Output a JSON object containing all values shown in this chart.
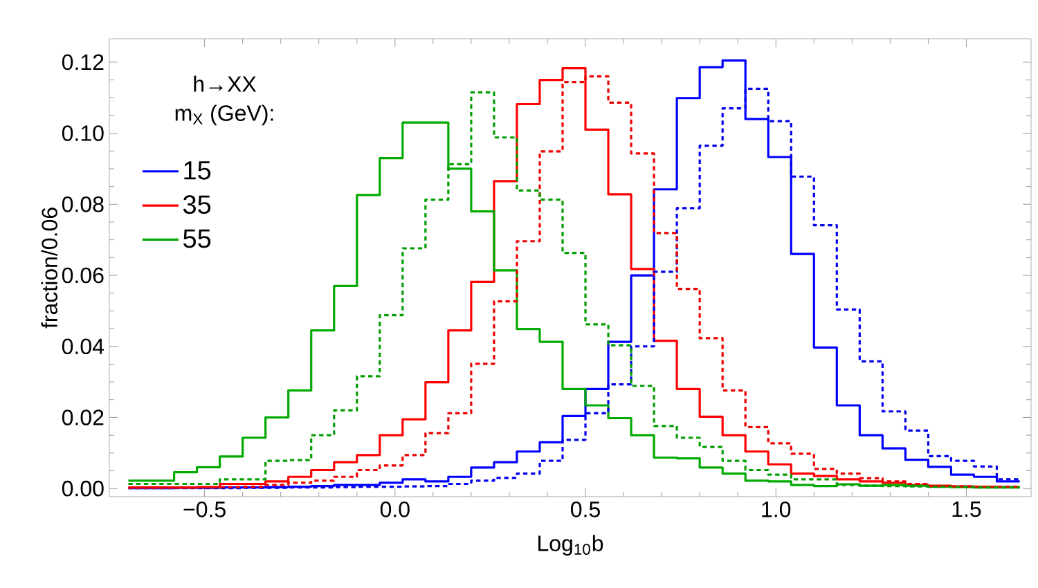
{
  "chart_data": {
    "type": "histogram",
    "bins": [
      -0.7,
      -0.64,
      -0.58,
      -0.52,
      -0.46,
      -0.4,
      -0.34,
      -0.28,
      -0.22,
      -0.16,
      -0.1,
      -0.04,
      0.02,
      0.08,
      0.14,
      0.2,
      0.26,
      0.32,
      0.38,
      0.44,
      0.5,
      0.56,
      0.62,
      0.68,
      0.74,
      0.8,
      0.86,
      0.92,
      0.98,
      1.04,
      1.1,
      1.16,
      1.22,
      1.28,
      1.34,
      1.4,
      1.46,
      1.52,
      1.58,
      1.64
    ],
    "xlabel": "Log$_{10}$b",
    "ylabel": "fraction/0.06",
    "legend_title": [
      "h→XX",
      "m$_{X}$ (GeV):"
    ],
    "legend": "top left",
    "xlim": [
      -0.75,
      1.67
    ],
    "ylim": [
      -0.0023,
      0.1266
    ],
    "xticks": [
      {
        "value": -0.5,
        "label": "−0.5"
      },
      {
        "value": 0,
        "label": "0.0"
      },
      {
        "value": 0.5,
        "label": "0.5"
      },
      {
        "value": 1,
        "label": "1.0"
      },
      {
        "value": 1.5,
        "label": "1.5"
      }
    ],
    "yticks": [
      {
        "value": 0,
        "label": "0.00"
      },
      {
        "value": 0.02,
        "label": "0.02"
      },
      {
        "value": 0.04,
        "label": "0.04"
      },
      {
        "value": 0.06,
        "label": "0.06"
      },
      {
        "value": 0.08,
        "label": "0.08"
      },
      {
        "value": 0.1,
        "label": "0.10"
      },
      {
        "value": 0.12,
        "label": "0.12"
      }
    ],
    "series": [
      {
        "name": "15",
        "color": "#0000ff",
        "line_style": "solid",
        "values": [
          0.0001,
          0.0001,
          0.0002,
          0.0002,
          0.0003,
          0.0003,
          0.0004,
          0.0005,
          0.0007,
          0.001,
          0.001,
          0.0016,
          0.0026,
          0.002,
          0.0033,
          0.0059,
          0.0074,
          0.0104,
          0.013,
          0.0204,
          0.028,
          0.0413,
          0.06,
          0.0842,
          0.1099,
          0.1186,
          0.1205,
          0.104,
          0.0933,
          0.066,
          0.0397,
          0.0234,
          0.015,
          0.0113,
          0.0081,
          0.0061,
          0.0039,
          0.0033,
          0.002
        ]
      },
      {
        "name": "35",
        "color": "#ff0000",
        "line_style": "solid",
        "values": [
          0.0003,
          0.0003,
          0.0003,
          0.0004,
          0.0013,
          0.0013,
          0.002,
          0.0033,
          0.0052,
          0.0074,
          0.0094,
          0.015,
          0.0195,
          0.0299,
          0.0445,
          0.0582,
          0.0865,
          0.1082,
          0.115,
          0.1183,
          0.101,
          0.0828,
          0.0618,
          0.0416,
          0.028,
          0.0202,
          0.015,
          0.0104,
          0.0068,
          0.0042,
          0.0035,
          0.0026,
          0.002,
          0.0016,
          0.001,
          0.0008,
          0.0006,
          0.0005,
          0.0004
        ]
      },
      {
        "name": "55",
        "color": "#00aa00",
        "line_style": "solid",
        "values": [
          0.0022,
          0.0022,
          0.0046,
          0.006,
          0.009,
          0.0143,
          0.02,
          0.0276,
          0.0445,
          0.057,
          0.0826,
          0.093,
          0.103,
          0.103,
          0.09,
          0.078,
          0.0614,
          0.0449,
          0.0413,
          0.028,
          0.0234,
          0.0198,
          0.015,
          0.0087,
          0.0085,
          0.0059,
          0.0042,
          0.0022,
          0.002,
          0.001,
          0.0007,
          0.0012,
          0.0008,
          0.001,
          0.0008,
          0.0005,
          0.0004,
          0.0003,
          0.0003
        ]
      },
      {
        "color": "#0000ee",
        "line_style": "dotted",
        "values": [
          0.0001,
          0.0001,
          0.0001,
          0.0001,
          0.0001,
          0.0002,
          0.0002,
          0.0003,
          0.0003,
          0.0004,
          0.0005,
          0.0005,
          0.0006,
          0.0007,
          0.0013,
          0.0022,
          0.003,
          0.0042,
          0.0078,
          0.0137,
          0.0212,
          0.0293,
          0.04,
          0.061,
          0.0789,
          0.0965,
          0.107,
          0.1125,
          0.1034,
          0.0878,
          0.0741,
          0.0504,
          0.0358,
          0.0217,
          0.0163,
          0.0091,
          0.0078,
          0.0062,
          0.0026
        ]
      },
      {
        "color": "#ee0000",
        "line_style": "dotted",
        "values": [
          0.0002,
          0.0002,
          0.0002,
          0.0003,
          0.0004,
          0.0005,
          0.001,
          0.0016,
          0.0022,
          0.0033,
          0.0052,
          0.0065,
          0.0094,
          0.0156,
          0.0212,
          0.0351,
          0.0527,
          0.0696,
          0.0949,
          0.1144,
          0.116,
          0.1086,
          0.0943,
          0.0719,
          0.0562,
          0.0423,
          0.0276,
          0.0173,
          0.0127,
          0.0098,
          0.0055,
          0.0042,
          0.0029,
          0.002,
          0.0013,
          0.0007,
          0.0006,
          0.0005,
          0.0005
        ]
      },
      {
        "color": "#009e00",
        "line_style": "dotted",
        "values": [
          0.0013,
          0.0013,
          0.0013,
          0.0013,
          0.0026,
          0.0026,
          0.0078,
          0.008,
          0.015,
          0.022,
          0.0316,
          0.0488,
          0.0676,
          0.0813,
          0.0913,
          0.1115,
          0.0988,
          0.0839,
          0.0813,
          0.0663,
          0.0462,
          0.0403,
          0.0289,
          0.0176,
          0.0143,
          0.0117,
          0.0078,
          0.0052,
          0.0039,
          0.0026,
          0.0026,
          0.001,
          0.0008,
          0.0007,
          0.0006,
          0.0005,
          0.0004,
          0.0003,
          0.0003
        ]
      }
    ]
  }
}
